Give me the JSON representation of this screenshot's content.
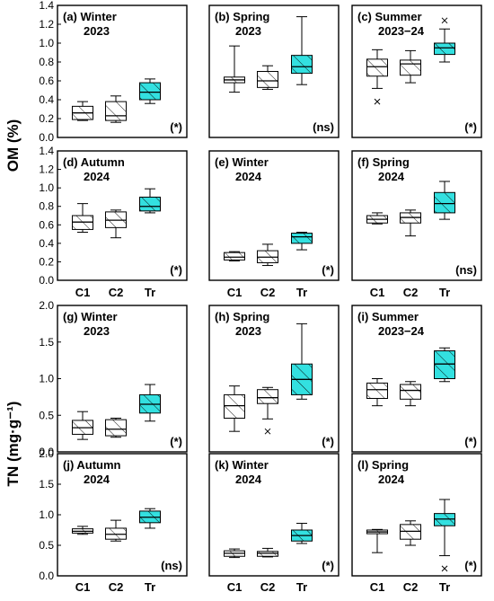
{
  "figure": {
    "ylabel_top": "OM (%)",
    "ylabel_bottom": "TN (mg·g⁻¹)",
    "hatch_color": "#000000",
    "plain_fill": "#ffffff",
    "tr_fill": "#33e0e0"
  },
  "chart_data": [
    {
      "type": "boxplot",
      "panel": "(a) Winter",
      "season_line2": "2023",
      "significance": "(*)",
      "ylabel": "OM (%)",
      "ylim": [
        0,
        1.4
      ],
      "yticks": [
        0.0,
        0.2,
        0.4,
        0.6,
        0.8,
        1.0,
        1.2,
        1.4
      ],
      "categories": [
        "C1",
        "C2",
        "Tr"
      ],
      "boxes": [
        {
          "name": "C1",
          "min": 0.18,
          "q1": 0.19,
          "median": 0.26,
          "q3": 0.33,
          "max": 0.38,
          "outliers": []
        },
        {
          "name": "C2",
          "min": 0.16,
          "q1": 0.18,
          "median": 0.23,
          "q3": 0.38,
          "max": 0.44,
          "outliers": []
        },
        {
          "name": "Tr",
          "min": 0.36,
          "q1": 0.4,
          "median": 0.48,
          "q3": 0.58,
          "max": 0.62,
          "outliers": []
        }
      ]
    },
    {
      "type": "boxplot",
      "panel": "(b) Spring",
      "season_line2": "2023",
      "significance": "(ns)",
      "ylim": [
        0,
        1.4
      ],
      "categories": [
        "C1",
        "C2",
        "Tr"
      ],
      "boxes": [
        {
          "name": "C1",
          "min": 0.48,
          "q1": 0.58,
          "median": 0.61,
          "q3": 0.64,
          "max": 0.97,
          "outliers": []
        },
        {
          "name": "C2",
          "min": 0.51,
          "q1": 0.53,
          "median": 0.6,
          "q3": 0.7,
          "max": 0.76,
          "outliers": []
        },
        {
          "name": "Tr",
          "min": 0.56,
          "q1": 0.68,
          "median": 0.75,
          "q3": 0.87,
          "max": 1.28,
          "outliers": []
        }
      ]
    },
    {
      "type": "boxplot",
      "panel": "(c) Summer",
      "season_line2": "2023−24",
      "significance": "(*)",
      "ylim": [
        0,
        1.4
      ],
      "categories": [
        "C1",
        "C2",
        "Tr"
      ],
      "boxes": [
        {
          "name": "C1",
          "min": 0.52,
          "q1": 0.65,
          "median": 0.75,
          "q3": 0.83,
          "max": 0.93,
          "outliers": [
            0.38
          ]
        },
        {
          "name": "C2",
          "min": 0.58,
          "q1": 0.66,
          "median": 0.78,
          "q3": 0.82,
          "max": 0.92,
          "outliers": []
        },
        {
          "name": "Tr",
          "min": 0.8,
          "q1": 0.88,
          "median": 0.95,
          "q3": 1.0,
          "max": 1.15,
          "outliers": [
            1.24
          ]
        }
      ]
    },
    {
      "type": "boxplot",
      "panel": "(d) Autumn",
      "season_line2": "2024",
      "significance": "(*)",
      "ylabel": "OM (%)",
      "ylim": [
        0,
        1.4
      ],
      "yticks": [
        0.0,
        0.2,
        0.4,
        0.6,
        0.8,
        1.0,
        1.2,
        1.4
      ],
      "categories": [
        "C1",
        "C2",
        "Tr"
      ],
      "boxes": [
        {
          "name": "C1",
          "min": 0.52,
          "q1": 0.55,
          "median": 0.63,
          "q3": 0.7,
          "max": 0.83,
          "outliers": []
        },
        {
          "name": "C2",
          "min": 0.46,
          "q1": 0.57,
          "median": 0.65,
          "q3": 0.74,
          "max": 0.76,
          "outliers": []
        },
        {
          "name": "Tr",
          "min": 0.73,
          "q1": 0.75,
          "median": 0.8,
          "q3": 0.9,
          "max": 0.99,
          "outliers": []
        }
      ]
    },
    {
      "type": "boxplot",
      "panel": "(e) Winter",
      "season_line2": "2024",
      "significance": "(*)",
      "ylim": [
        0,
        1.4
      ],
      "categories": [
        "C1",
        "C2",
        "Tr"
      ],
      "boxes": [
        {
          "name": "C1",
          "min": 0.21,
          "q1": 0.22,
          "median": 0.25,
          "q3": 0.3,
          "max": 0.31,
          "outliers": []
        },
        {
          "name": "C2",
          "min": 0.16,
          "q1": 0.19,
          "median": 0.25,
          "q3": 0.32,
          "max": 0.39,
          "outliers": []
        },
        {
          "name": "Tr",
          "min": 0.33,
          "q1": 0.4,
          "median": 0.47,
          "q3": 0.51,
          "max": 0.52,
          "outliers": []
        }
      ]
    },
    {
      "type": "boxplot",
      "panel": "(f) Spring",
      "season_line2": "2024",
      "significance": "(ns)",
      "ylim": [
        0,
        1.4
      ],
      "categories": [
        "C1",
        "C2",
        "Tr"
      ],
      "boxes": [
        {
          "name": "C1",
          "min": 0.61,
          "q1": 0.62,
          "median": 0.66,
          "q3": 0.7,
          "max": 0.73,
          "outliers": []
        },
        {
          "name": "C2",
          "min": 0.48,
          "q1": 0.62,
          "median": 0.68,
          "q3": 0.73,
          "max": 0.76,
          "outliers": []
        },
        {
          "name": "Tr",
          "min": 0.66,
          "q1": 0.73,
          "median": 0.83,
          "q3": 0.95,
          "max": 1.07,
          "outliers": []
        }
      ]
    },
    {
      "type": "boxplot",
      "panel": "(g) Winter",
      "season_line2": "2023",
      "significance": "(*)",
      "ylabel": "TN (mg·g⁻¹)",
      "ylim": [
        0,
        2.0
      ],
      "yticks": [
        0.0,
        0.5,
        1.0,
        1.5,
        2.0
      ],
      "categories": [
        "C1",
        "C2",
        "Tr"
      ],
      "boxes": [
        {
          "name": "C1",
          "min": 0.17,
          "q1": 0.24,
          "median": 0.33,
          "q3": 0.43,
          "max": 0.55,
          "outliers": []
        },
        {
          "name": "C2",
          "min": 0.2,
          "q1": 0.22,
          "median": 0.31,
          "q3": 0.44,
          "max": 0.46,
          "outliers": []
        },
        {
          "name": "Tr",
          "min": 0.42,
          "q1": 0.53,
          "median": 0.65,
          "q3": 0.78,
          "max": 0.92,
          "outliers": []
        }
      ]
    },
    {
      "type": "boxplot",
      "panel": "(h) Spring",
      "season_line2": "2023",
      "significance": "(*)",
      "ylim": [
        0,
        2.0
      ],
      "categories": [
        "C1",
        "C2",
        "Tr"
      ],
      "boxes": [
        {
          "name": "C1",
          "min": 0.28,
          "q1": 0.46,
          "median": 0.63,
          "q3": 0.78,
          "max": 0.9,
          "outliers": []
        },
        {
          "name": "C2",
          "min": 0.45,
          "q1": 0.66,
          "median": 0.74,
          "q3": 0.85,
          "max": 0.88,
          "outliers": [
            0.28
          ]
        },
        {
          "name": "Tr",
          "min": 0.72,
          "q1": 0.78,
          "median": 0.99,
          "q3": 1.2,
          "max": 1.75,
          "outliers": []
        }
      ]
    },
    {
      "type": "boxplot",
      "panel": "(i) Summer",
      "season_line2": "2023−24",
      "significance": "(*)",
      "ylim": [
        0,
        2.0
      ],
      "categories": [
        "C1",
        "C2",
        "Tr"
      ],
      "boxes": [
        {
          "name": "C1",
          "min": 0.63,
          "q1": 0.73,
          "median": 0.85,
          "q3": 0.94,
          "max": 1.0,
          "outliers": []
        },
        {
          "name": "C2",
          "min": 0.63,
          "q1": 0.72,
          "median": 0.84,
          "q3": 0.92,
          "max": 0.96,
          "outliers": []
        },
        {
          "name": "Tr",
          "min": 0.96,
          "q1": 1.0,
          "median": 1.2,
          "q3": 1.38,
          "max": 1.42,
          "outliers": []
        }
      ]
    },
    {
      "type": "boxplot",
      "panel": "(j) Autumn",
      "season_line2": "2024",
      "significance": "(ns)",
      "ylabel": "TN (mg·g⁻¹)",
      "ylim": [
        0,
        2.0
      ],
      "yticks": [
        0.0,
        0.5,
        1.0,
        1.5,
        2.0
      ],
      "categories": [
        "C1",
        "C2",
        "Tr"
      ],
      "boxes": [
        {
          "name": "C1",
          "min": 0.68,
          "q1": 0.7,
          "median": 0.73,
          "q3": 0.77,
          "max": 0.81,
          "outliers": []
        },
        {
          "name": "C2",
          "min": 0.57,
          "q1": 0.6,
          "median": 0.68,
          "q3": 0.78,
          "max": 0.91,
          "outliers": []
        },
        {
          "name": "Tr",
          "min": 0.78,
          "q1": 0.87,
          "median": 0.96,
          "q3": 1.06,
          "max": 1.1,
          "outliers": []
        }
      ]
    },
    {
      "type": "boxplot",
      "panel": "(k) Winter",
      "season_line2": "2024",
      "significance": "(*)",
      "ylim": [
        0,
        2.0
      ],
      "categories": [
        "C1",
        "C2",
        "Tr"
      ],
      "boxes": [
        {
          "name": "C1",
          "min": 0.3,
          "q1": 0.32,
          "median": 0.37,
          "q3": 0.41,
          "max": 0.44,
          "outliers": []
        },
        {
          "name": "C2",
          "min": 0.31,
          "q1": 0.32,
          "median": 0.37,
          "q3": 0.4,
          "max": 0.45,
          "outliers": []
        },
        {
          "name": "Tr",
          "min": 0.53,
          "q1": 0.57,
          "median": 0.66,
          "q3": 0.75,
          "max": 0.86,
          "outliers": []
        }
      ]
    },
    {
      "type": "boxplot",
      "panel": "(l) Spring",
      "season_line2": "2024",
      "significance": "(*)",
      "ylim": [
        0,
        2.0
      ],
      "categories": [
        "C1",
        "C2",
        "Tr"
      ],
      "boxes": [
        {
          "name": "C1",
          "min": 0.38,
          "q1": 0.69,
          "median": 0.72,
          "q3": 0.75,
          "max": 0.76,
          "outliers": []
        },
        {
          "name": "C2",
          "min": 0.5,
          "q1": 0.6,
          "median": 0.73,
          "q3": 0.84,
          "max": 0.9,
          "outliers": []
        },
        {
          "name": "Tr",
          "min": 0.33,
          "q1": 0.82,
          "median": 0.93,
          "q3": 1.02,
          "max": 1.25,
          "outliers": [
            0.12
          ]
        }
      ]
    }
  ]
}
